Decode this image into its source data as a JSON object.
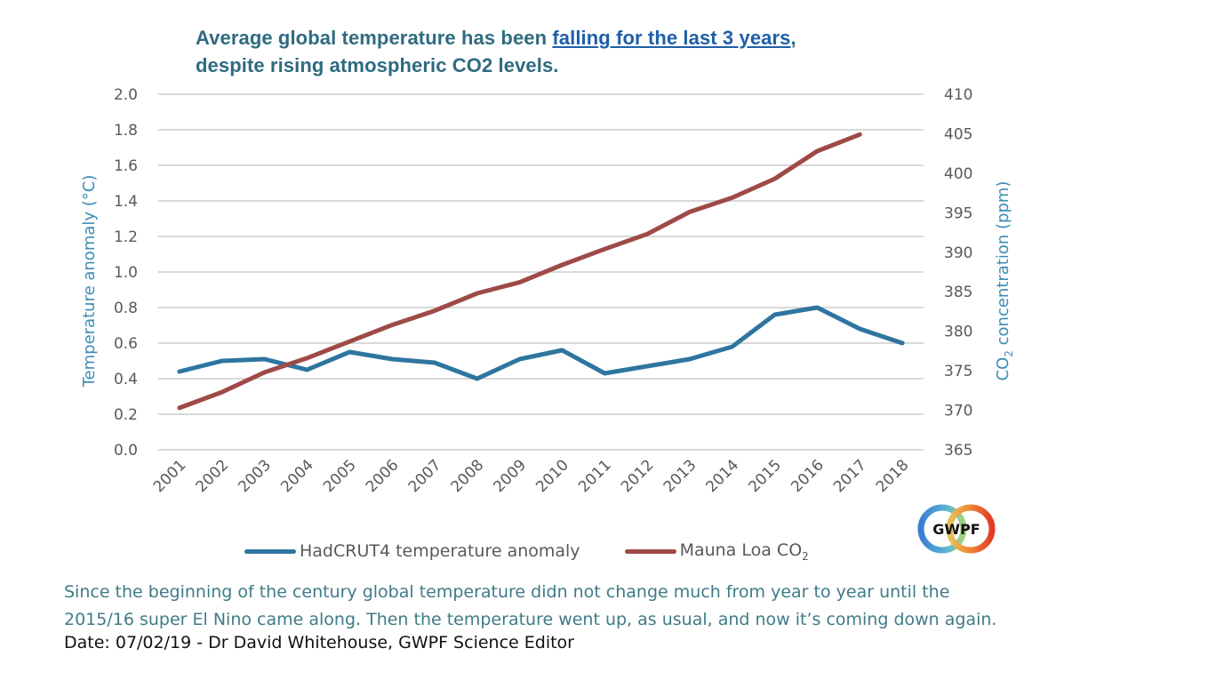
{
  "header": {
    "title_part1": "Average global temperature has been ",
    "title_link": "falling for the last 3 years",
    "title_part2": ",",
    "title_line2": "despite rising atmospheric CO2 levels."
  },
  "chart_data": {
    "type": "line",
    "title": "Average global temperature has been falling for the last 3 years, despite rising atmospheric CO2 levels.",
    "x": [
      "2001",
      "2002",
      "2003",
      "2004",
      "2005",
      "2006",
      "2007",
      "2008",
      "2009",
      "2010",
      "2011",
      "2012",
      "2013",
      "2014",
      "2015",
      "2016",
      "2017",
      "2018"
    ],
    "series": [
      {
        "name": "HadCRUT4 temperature anomaly",
        "axis": "left",
        "color": "#2e75a0",
        "values": [
          0.44,
          0.5,
          0.51,
          0.45,
          0.55,
          0.51,
          0.49,
          0.4,
          0.51,
          0.56,
          0.43,
          0.47,
          0.51,
          0.58,
          0.76,
          0.8,
          0.68,
          0.6
        ]
      },
      {
        "name": "Mauna Loa CO2",
        "axis": "right",
        "color": "#9e4a47",
        "values": [
          370.3,
          372.3,
          374.8,
          376.6,
          378.7,
          380.8,
          382.6,
          384.8,
          386.2,
          388.4,
          390.4,
          392.3,
          395.1,
          396.9,
          399.3,
          402.8,
          404.9,
          null
        ]
      }
    ],
    "ylabel": "Temperature anomaly (°C)",
    "ylabel_right": "CO2 concentration (ppm)",
    "ylim": [
      0.0,
      2.0
    ],
    "ylim_right": [
      365,
      410
    ],
    "yticks": [
      "0.0",
      "0.2",
      "0.4",
      "0.6",
      "0.8",
      "1.0",
      "1.2",
      "1.4",
      "1.6",
      "1.8",
      "2.0"
    ],
    "yticks_right": [
      "365",
      "370",
      "375",
      "380",
      "385",
      "390",
      "395",
      "400",
      "405",
      "410"
    ],
    "grid": true,
    "legend_position": "bottom"
  },
  "legend": {
    "temp_label": "HadCRUT4 temperature anomaly",
    "co2_label": "Mauna Loa CO",
    "co2_sub": "2"
  },
  "axis_titles": {
    "left": "Temperature anomaly (°C)",
    "right_prefix": "CO",
    "right_sub": "2",
    "right_suffix": " concentration (ppm)"
  },
  "logo": {
    "text": "GWPF"
  },
  "caption": {
    "line1": "Since the beginning of the century global temperature didn not change much from year to year until the",
    "line2": "2015/16 super El Nino came along. Then the temperature went up, as usual, and now it’s coming down again."
  },
  "footer": {
    "text": "Date: 07/02/19 - Dr David Whitehouse, GWPF Science Editor"
  }
}
